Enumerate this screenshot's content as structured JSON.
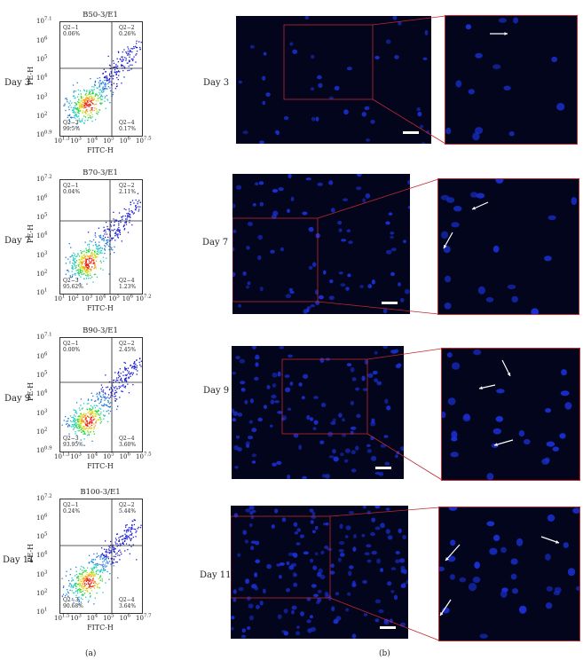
{
  "panel_a_label": "(a)",
  "panel_b_label": "(b)",
  "axes": {
    "x_label": "FITC-H",
    "y_label": "PE-H"
  },
  "rows": [
    {
      "day": "Day 3",
      "title": "B50-3/E1",
      "q1": "Q2−1",
      "q1v": "0.06%",
      "q2": "Q2−2",
      "q2v": "0.26%",
      "q3": "Q2−3",
      "q3v": "99.5%",
      "q4": "Q2−4",
      "q4v": "0.17%",
      "x_ticks": [
        "10^1.3",
        "10^3",
        "10^4",
        "10^5",
        "10^6",
        "10^7.5"
      ],
      "y_ticks": [
        "10^7.1",
        "10^6",
        "10^5",
        "10^4",
        "10^3",
        "10^2",
        "10^0.9"
      ]
    },
    {
      "day": "Day 7",
      "title": "B70-3/E1",
      "q1": "Q2−1",
      "q1v": "0.04%",
      "q2": "Q2−2",
      "q2v": "2.11%",
      "q3": "Q2−3",
      "q3v": "95.62%",
      "q4": "Q2−4",
      "q4v": "1.23%",
      "x_ticks": [
        "10^1",
        "10^2",
        "10^3",
        "10^4",
        "10^5",
        "10^6",
        "10^7.2"
      ],
      "y_ticks": [
        "10^7.2",
        "10^6",
        "10^5",
        "10^4",
        "10^3",
        "10^2",
        "10^1"
      ]
    },
    {
      "day": "Day 9",
      "title": "B90-3/E1",
      "q1": "Q2−1",
      "q1v": "0.00%",
      "q2": "Q2−2",
      "q2v": "2.45%",
      "q3": "Q2−3",
      "q3v": "93.95%",
      "q4": "Q2−4",
      "q4v": "3.60%",
      "x_ticks": [
        "10^1.3",
        "10^3",
        "10^4",
        "10^5",
        "10^6",
        "10^7.5"
      ],
      "y_ticks": [
        "10^7.1",
        "10^6",
        "10^5",
        "10^4",
        "10^3",
        "10^2",
        "10^0.9"
      ]
    },
    {
      "day": "Day 11",
      "title": "B100-3/E1",
      "q1": "Q2−1",
      "q1v": "0.24%",
      "q2": "Q2−2",
      "q2v": "5.44%",
      "q3": "Q2−3",
      "q3v": "90.68%",
      "q4": "Q2−4",
      "q4v": "3.64%",
      "x_ticks": [
        "10^1.5",
        "10^3",
        "10^4",
        "10^5",
        "10^6",
        "10^7.7"
      ],
      "y_ticks": [
        "10^7.2",
        "10^6",
        "10^5",
        "10^4",
        "10^3",
        "10^2",
        "10^1"
      ]
    }
  ],
  "colors": {
    "micro_bg": "#02051c",
    "nuclei": "#1a2fd0",
    "zoom_frame": "#c0282e",
    "arrow": "#ffffff"
  }
}
